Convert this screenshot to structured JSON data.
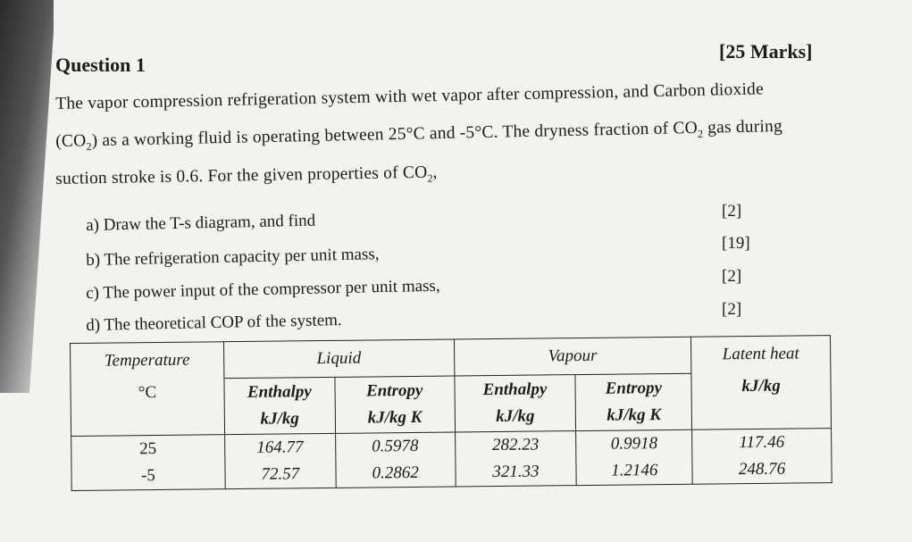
{
  "question": {
    "title": "Question 1",
    "marks": "[25 Marks]"
  },
  "paragraph": {
    "line1": "The vapor compression refrigeration system with wet vapor after compression, and Carbon dioxide",
    "line2_pre": "(CO",
    "line2_sub": "2",
    "line2_post": ") as a working fluid is operating between 25°C and -5°C. The dryness fraction of CO",
    "line2_sub2": "2",
    "line2_end": " gas during",
    "line3_pre": "suction stroke is 0.6. For the given properties of CO",
    "line3_sub": "2",
    "line3_end": ","
  },
  "items": [
    {
      "text": "a)  Draw the T-s diagram, and find",
      "marks": "[2]"
    },
    {
      "text": "b)  The refrigeration capacity per unit mass,",
      "marks": "[19]"
    },
    {
      "text": "c)  The power input of the compressor per unit mass,",
      "marks": "[2]"
    },
    {
      "text": "d)  The theoretical COP of the system.",
      "marks": "[2]"
    }
  ],
  "table": {
    "temperature_header": "Temperature",
    "temperature_unit": "°C",
    "liquid_header": "Liquid",
    "vapour_header": "Vapour",
    "latent_header": "Latent heat",
    "latent_unit": "kJ/kg",
    "enthalpy": "Enthalpy",
    "entropy": "Entropy",
    "enthalpy_unit": "kJ/kg",
    "entropy_unit": "kJ/kg K",
    "rows": [
      {
        "temp": "25",
        "liq_h": "164.77",
        "liq_s": "0.5978",
        "vap_h": "282.23",
        "vap_s": "0.9918",
        "latent": "117.46"
      },
      {
        "temp": "-5",
        "liq_h": "72.57",
        "liq_s": "0.2862",
        "vap_h": "321.33",
        "vap_s": "1.2146",
        "latent": "248.76"
      }
    ]
  }
}
